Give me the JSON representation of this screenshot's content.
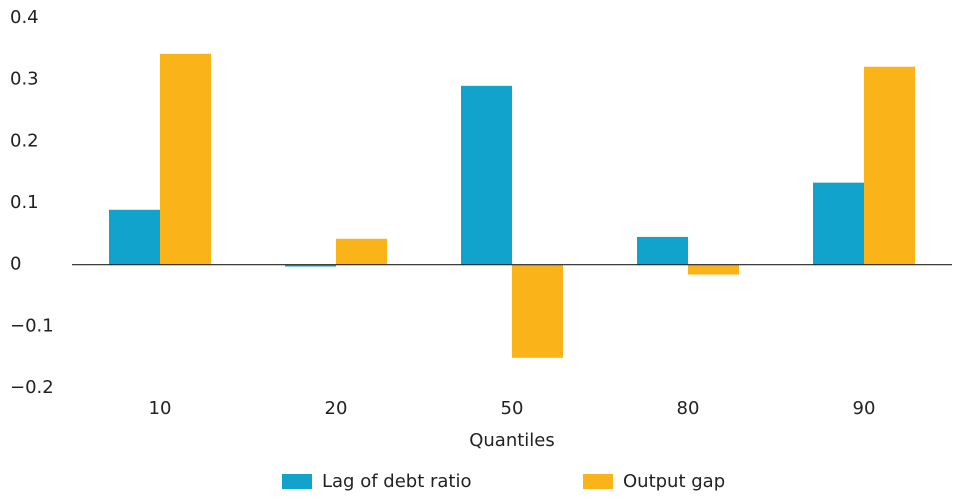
{
  "chart_data": {
    "type": "bar",
    "x_label": "Quantiles",
    "categories": [
      "10",
      "20",
      "50",
      "80",
      "90"
    ],
    "series": [
      {
        "name": "Lag of debt ratio",
        "color": "#12a3cc",
        "values": [
          0.089,
          -0.003,
          0.29,
          0.045,
          0.133
        ]
      },
      {
        "name": "Output gap",
        "color": "#fbb31a",
        "values": [
          0.342,
          0.042,
          -0.151,
          -0.016,
          0.321
        ]
      }
    ],
    "ylim": [
      -0.2,
      0.4
    ],
    "yticks": [
      {
        "value": -0.2,
        "label": "−0.2"
      },
      {
        "value": -0.1,
        "label": "−0.1"
      },
      0,
      0.1,
      0.2,
      0.3,
      0.4
    ],
    "grid": false
  }
}
